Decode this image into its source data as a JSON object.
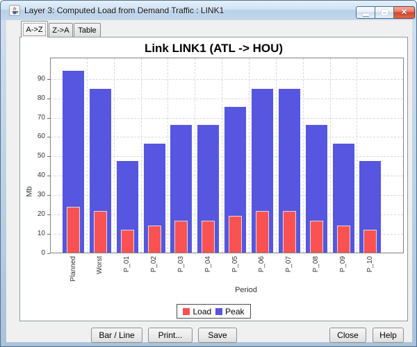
{
  "window": {
    "title": "Layer 3: Computed Load from Demand Traffic : LINK1"
  },
  "tabs": [
    {
      "label": "A->Z",
      "selected": true
    },
    {
      "label": "Z->A",
      "selected": false
    },
    {
      "label": "Table",
      "selected": false
    }
  ],
  "chart_data": {
    "type": "bar",
    "title": "Link LINK1 (ATL -> HOU)",
    "xlabel": "Period",
    "ylabel": "Mb",
    "ylim": [
      0,
      101
    ],
    "yticks": [
      0,
      10,
      20,
      30,
      40,
      50,
      60,
      70,
      80,
      90
    ],
    "grid": "dashed, horizontal and vertical",
    "legend_position": "bottom",
    "categories": [
      "Planned",
      "Worst",
      "P_01",
      "P_02",
      "P_03",
      "P_04",
      "P_05",
      "P_06",
      "P_07",
      "P_08",
      "P_09",
      "P_10"
    ],
    "series": [
      {
        "name": "Load",
        "color": "#fa5252",
        "values": [
          24.1,
          21.7,
          12.1,
          14.5,
          16.8,
          16.8,
          19.3,
          21.7,
          21.7,
          16.8,
          14.5,
          12.1
        ]
      },
      {
        "name": "Peak",
        "color": "#5656e0",
        "values": [
          94.3,
          85.0,
          47.5,
          56.6,
          66.1,
          66.1,
          75.6,
          85.0,
          85.0,
          66.1,
          56.6,
          47.5
        ]
      }
    ]
  },
  "buttons": {
    "bar_line": "Bar / Line",
    "print": "Print...",
    "save": "Save",
    "close": "Close",
    "help": "Help"
  }
}
